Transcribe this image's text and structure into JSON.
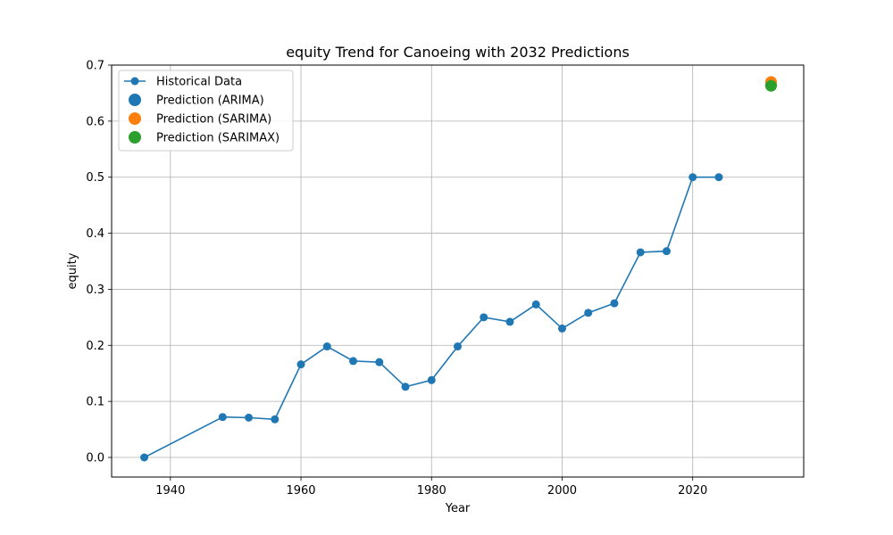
{
  "chart_data": {
    "type": "line",
    "title": "equity Trend for Canoeing with 2032 Predictions",
    "xlabel": "Year",
    "ylabel": "equity",
    "xlim": [
      1931,
      2037
    ],
    "ylim": [
      -0.035,
      0.7
    ],
    "xticks": [
      1940,
      1960,
      1980,
      2000,
      2020
    ],
    "yticks": [
      0.0,
      0.1,
      0.2,
      0.3,
      0.4,
      0.5,
      0.6,
      0.7
    ],
    "ytick_labels": [
      "0.0",
      "0.1",
      "0.2",
      "0.3",
      "0.4",
      "0.5",
      "0.6",
      "0.7"
    ],
    "grid": true,
    "legend_position": "top-left",
    "series": [
      {
        "name": "Historical Data",
        "kind": "line-marker",
        "color": "#1f77b4",
        "x": [
          1936,
          1948,
          1952,
          1956,
          1960,
          1964,
          1968,
          1972,
          1976,
          1980,
          1984,
          1988,
          1992,
          1996,
          2000,
          2004,
          2008,
          2012,
          2016,
          2020,
          2024
        ],
        "y": [
          0.0,
          0.072,
          0.071,
          0.068,
          0.166,
          0.198,
          0.172,
          0.17,
          0.126,
          0.138,
          0.198,
          0.25,
          0.242,
          0.273,
          0.23,
          0.258,
          0.275,
          0.366,
          0.368,
          0.5,
          0.5
        ]
      },
      {
        "name": "Prediction (ARIMA)",
        "kind": "point",
        "color": "#1f77b4",
        "x": [
          2032
        ],
        "y": [
          0.665
        ]
      },
      {
        "name": "Prediction (SARIMA)",
        "kind": "point",
        "color": "#ff7f0e",
        "x": [
          2032
        ],
        "y": [
          0.67
        ]
      },
      {
        "name": "Prediction (SARIMAX)",
        "kind": "point",
        "color": "#2ca02c",
        "x": [
          2032
        ],
        "y": [
          0.663
        ]
      }
    ]
  }
}
